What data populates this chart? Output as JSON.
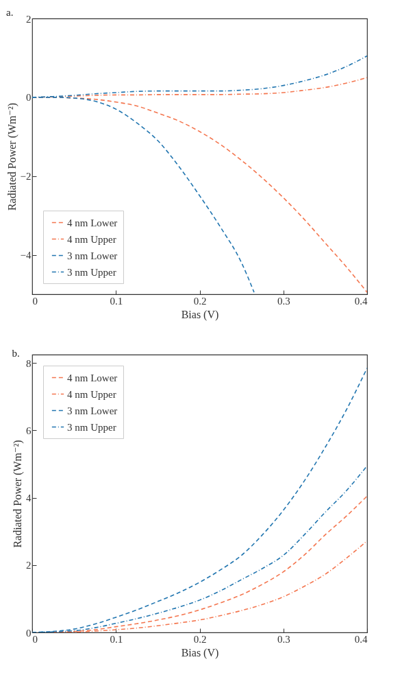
{
  "chart_data": [
    {
      "type": "line",
      "title": "a.",
      "xlabel": "Bias (V)",
      "ylabel": "Radiated Power (Wm⁻²)",
      "xlim": [
        0,
        0.4
      ],
      "ylim": [
        -5,
        2
      ],
      "xticks": [
        0,
        0.1,
        0.2,
        0.3,
        0.4
      ],
      "yticks": [
        -4,
        -2,
        0,
        2
      ],
      "grid": false,
      "legend": "bottom left",
      "marker": "none",
      "x": [
        0,
        0.025,
        0.05,
        0.075,
        0.1,
        0.125,
        0.15,
        0.175,
        0.2,
        0.225,
        0.25,
        0.275,
        0.3,
        0.325,
        0.35,
        0.375,
        0.4
      ],
      "series": [
        {
          "name": "4 nm Lower",
          "color": "#f4764f",
          "line_style": "dashed",
          "values": [
            0,
            0,
            -0.02,
            -0.05,
            -0.12,
            -0.22,
            -0.4,
            -0.6,
            -0.87,
            -1.2,
            -1.6,
            -2.05,
            -2.55,
            -3.1,
            -3.7,
            -4.3,
            -4.95
          ]
        },
        {
          "name": "4 nm Upper",
          "color": "#f4764f",
          "line_style": "dashdot",
          "values": [
            0,
            0.01,
            0.03,
            0.05,
            0.06,
            0.06,
            0.07,
            0.07,
            0.07,
            0.07,
            0.08,
            0.09,
            0.12,
            0.18,
            0.25,
            0.36,
            0.5
          ]
        },
        {
          "name": "3 nm Lower",
          "color": "#2276b0",
          "line_style": "dashed",
          "x": [
            0,
            0.025,
            0.05,
            0.075,
            0.1,
            0.125,
            0.15,
            0.175,
            0.2,
            0.225,
            0.25,
            0.265
          ],
          "values": [
            0,
            0,
            -0.02,
            -0.1,
            -0.3,
            -0.65,
            -1.1,
            -1.75,
            -2.5,
            -3.3,
            -4.2,
            -4.95
          ]
        },
        {
          "name": "3 nm Upper",
          "color": "#2276b0",
          "line_style": "dashdot",
          "values": [
            0,
            0.02,
            0.05,
            0.09,
            0.12,
            0.15,
            0.16,
            0.16,
            0.16,
            0.16,
            0.18,
            0.22,
            0.3,
            0.42,
            0.57,
            0.78,
            1.05
          ]
        }
      ]
    },
    {
      "type": "line",
      "title": "b.",
      "xlabel": "Bias (V)",
      "ylabel": "Radiated Power (Wm⁻²)",
      "xlim": [
        0,
        0.4
      ],
      "ylim": [
        0,
        8.25
      ],
      "xticks": [
        0,
        0.1,
        0.2,
        0.3,
        0.4
      ],
      "yticks": [
        0,
        2,
        4,
        6,
        8
      ],
      "grid": false,
      "legend": "top left",
      "marker": "none",
      "x": [
        0,
        0.025,
        0.05,
        0.075,
        0.1,
        0.125,
        0.15,
        0.175,
        0.2,
        0.225,
        0.25,
        0.275,
        0.3,
        0.325,
        0.35,
        0.375,
        0.4
      ],
      "series": [
        {
          "name": "4 nm Lower",
          "color": "#f4764f",
          "line_style": "dashed",
          "values": [
            0,
            0.01,
            0.03,
            0.08,
            0.17,
            0.26,
            0.37,
            0.5,
            0.67,
            0.88,
            1.12,
            1.43,
            1.8,
            2.3,
            2.9,
            3.45,
            4.05
          ]
        },
        {
          "name": "4 nm Upper",
          "color": "#f4764f",
          "line_style": "dashdot",
          "values": [
            0,
            0,
            0.01,
            0.04,
            0.08,
            0.13,
            0.2,
            0.28,
            0.37,
            0.5,
            0.65,
            0.83,
            1.06,
            1.37,
            1.73,
            2.2,
            2.72
          ]
        },
        {
          "name": "3 nm Lower",
          "color": "#2276b0",
          "line_style": "dashed",
          "values": [
            0,
            0.03,
            0.1,
            0.25,
            0.45,
            0.67,
            0.92,
            1.18,
            1.49,
            1.86,
            2.29,
            2.9,
            3.63,
            4.5,
            5.5,
            6.6,
            7.85
          ]
        },
        {
          "name": "3 nm Upper",
          "color": "#2276b0",
          "line_style": "dashdot",
          "values": [
            0,
            0.02,
            0.05,
            0.14,
            0.27,
            0.41,
            0.57,
            0.75,
            0.96,
            1.24,
            1.57,
            1.9,
            2.29,
            2.9,
            3.57,
            4.2,
            4.95
          ]
        }
      ]
    }
  ]
}
